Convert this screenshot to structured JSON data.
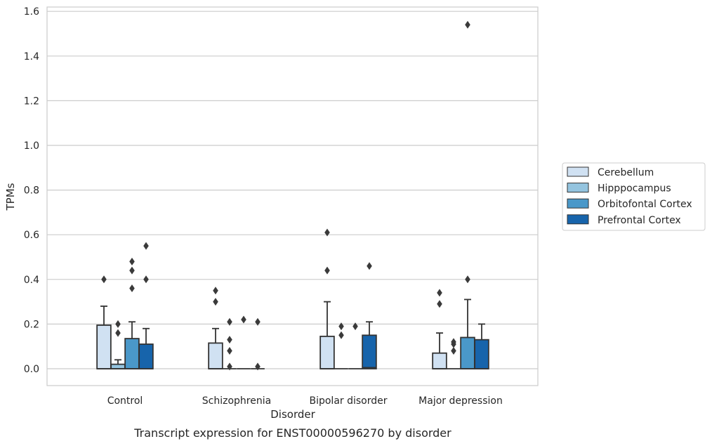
{
  "caption": "Transcript expression for ENST00000596270 by disorder",
  "chart_data": {
    "type": "box",
    "xlabel": "Disorder",
    "ylabel": "TPMs",
    "ylim": [
      -0.075,
      1.62
    ],
    "yticks": [
      0.0,
      0.2,
      0.4,
      0.6,
      0.8,
      1.0,
      1.2,
      1.4,
      1.6
    ],
    "ytick_labels": [
      "0.0",
      "0.2",
      "0.4",
      "0.6",
      "0.8",
      "1.0",
      "1.2",
      "1.4",
      "1.6"
    ],
    "grid": "horizontal",
    "legend_position": "right",
    "categories": [
      "Control",
      "Schizophrenia",
      "Bipolar disorder",
      "Major depression"
    ],
    "series": [
      {
        "name": "Cerebellum",
        "color": "#d0e1f2",
        "boxes": [
          {
            "q1": 0.0,
            "median": 0.0,
            "q3": 0.195,
            "whisker_low": 0.0,
            "whisker_high": 0.28,
            "outliers": [
              0.4
            ]
          },
          {
            "q1": 0.0,
            "median": 0.0,
            "q3": 0.115,
            "whisker_low": 0.0,
            "whisker_high": 0.18,
            "outliers": [
              0.3,
              0.35
            ]
          },
          {
            "q1": 0.0,
            "median": 0.0,
            "q3": 0.145,
            "whisker_low": 0.0,
            "whisker_high": 0.3,
            "outliers": [
              0.44,
              0.61
            ]
          },
          {
            "q1": 0.0,
            "median": 0.0,
            "q3": 0.07,
            "whisker_low": 0.0,
            "whisker_high": 0.16,
            "outliers": [
              0.29,
              0.34
            ]
          }
        ]
      },
      {
        "name": "Hipppocampus",
        "color": "#94c4df",
        "boxes": [
          {
            "q1": 0.0,
            "median": 0.0,
            "q3": 0.02,
            "whisker_low": 0.0,
            "whisker_high": 0.04,
            "outliers": [
              0.16,
              0.2
            ]
          },
          {
            "q1": 0.0,
            "median": 0.0,
            "q3": 0.0,
            "whisker_low": 0.0,
            "whisker_high": 0.0,
            "outliers": [
              0.01,
              0.08,
              0.13,
              0.21
            ]
          },
          {
            "q1": 0.0,
            "median": 0.0,
            "q3": 0.0,
            "whisker_low": 0.0,
            "whisker_high": 0.0,
            "outliers": [
              0.15,
              0.19
            ]
          },
          {
            "q1": 0.0,
            "median": 0.0,
            "q3": 0.0,
            "whisker_low": 0.0,
            "whisker_high": 0.0,
            "outliers": [
              0.08,
              0.11,
              0.12
            ]
          }
        ]
      },
      {
        "name": "Orbitofontal Cortex",
        "color": "#4a98c9",
        "boxes": [
          {
            "q1": 0.0,
            "median": 0.0,
            "q3": 0.135,
            "whisker_low": 0.0,
            "whisker_high": 0.21,
            "outliers": [
              0.36,
              0.44,
              0.48
            ]
          },
          {
            "q1": 0.0,
            "median": 0.0,
            "q3": 0.0,
            "whisker_low": 0.0,
            "whisker_high": 0.0,
            "outliers": [
              0.22
            ]
          },
          {
            "q1": 0.0,
            "median": 0.0,
            "q3": 0.0,
            "whisker_low": 0.0,
            "whisker_high": 0.0,
            "outliers": [
              0.19
            ]
          },
          {
            "q1": 0.0,
            "median": 0.0,
            "q3": 0.14,
            "whisker_low": 0.0,
            "whisker_high": 0.31,
            "outliers": [
              0.4,
              1.54
            ]
          }
        ]
      },
      {
        "name": "Prefrontal Cortex",
        "color": "#1764ab",
        "boxes": [
          {
            "q1": 0.0,
            "median": 0.0,
            "q3": 0.11,
            "whisker_low": 0.0,
            "whisker_high": 0.18,
            "outliers": [
              0.4,
              0.55
            ]
          },
          {
            "q1": 0.0,
            "median": 0.0,
            "q3": 0.0,
            "whisker_low": 0.0,
            "whisker_high": 0.0,
            "outliers": [
              0.01,
              0.21
            ]
          },
          {
            "q1": 0.0,
            "median": 0.005,
            "q3": 0.15,
            "whisker_low": 0.0,
            "whisker_high": 0.21,
            "outliers": [
              0.46
            ]
          },
          {
            "q1": 0.0,
            "median": 0.0,
            "q3": 0.13,
            "whisker_low": 0.0,
            "whisker_high": 0.2,
            "outliers": []
          }
        ]
      }
    ]
  }
}
